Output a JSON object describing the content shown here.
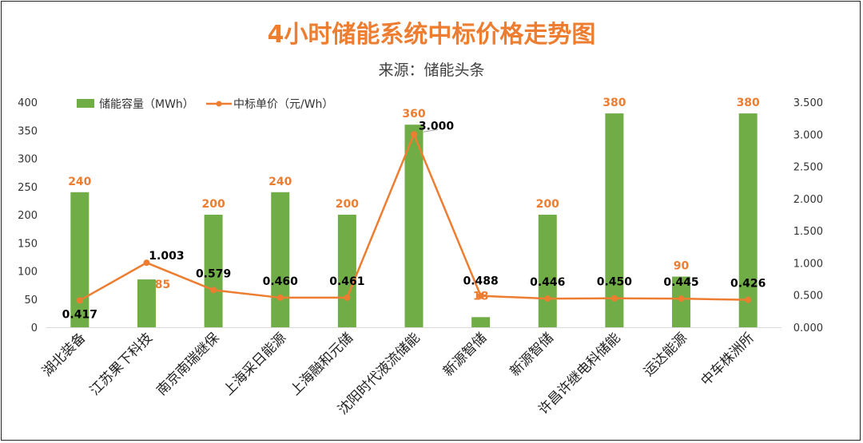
{
  "title": "4小时储能系统中标价格走势图",
  "subtitle": "来源：储能头条",
  "colors": {
    "bar": "#70AD47",
    "line": "#ED7D31",
    "axis_text": "#333333",
    "price_label": "#000000",
    "bar_label": "#ED7D31"
  },
  "chart_data": {
    "type": "bar",
    "title": "4小时储能系统中标价格走势图",
    "subtitle": "来源：储能头条",
    "categories": [
      "湖北装备",
      "江苏果下科技",
      "南京南瑞继保",
      "上海采日能源",
      "上海融和元储",
      "沈阳时代液流储能",
      "新源智储",
      "新源智储",
      "许昌许继电科储能",
      "运达能源",
      "中车株洲所"
    ],
    "series": [
      {
        "name": "储能容量（MWh）",
        "type": "bar",
        "axis": "left",
        "values": [
          240,
          85,
          200,
          240,
          200,
          360,
          18,
          200,
          380,
          90,
          380
        ]
      },
      {
        "name": "中标单价（元/Wh）",
        "type": "line",
        "axis": "right",
        "values": [
          0.417,
          1.003,
          0.579,
          0.46,
          0.461,
          3.0,
          0.488,
          0.446,
          0.45,
          0.445,
          0.426
        ]
      }
    ],
    "value_labels_left": [
      "240",
      "85",
      "200",
      "240",
      "200",
      "360",
      "18",
      "200",
      "380",
      "90",
      "380"
    ],
    "value_labels_right": [
      "0.417",
      "1.003",
      "0.579",
      "0.460",
      "0.461",
      "3.000",
      "0.488",
      "0.446",
      "0.450",
      "0.445",
      "0.426"
    ],
    "y_left": {
      "min": 0,
      "max": 400,
      "ticks": [
        "0",
        "50",
        "100",
        "150",
        "200",
        "250",
        "300",
        "350",
        "400"
      ]
    },
    "y_right": {
      "min": 0,
      "max": 3.5,
      "ticks": [
        "0.000",
        "0.500",
        "1.000",
        "1.500",
        "2.000",
        "2.500",
        "3.000",
        "3.500"
      ]
    },
    "grid": false,
    "legend_position": "top-left"
  }
}
